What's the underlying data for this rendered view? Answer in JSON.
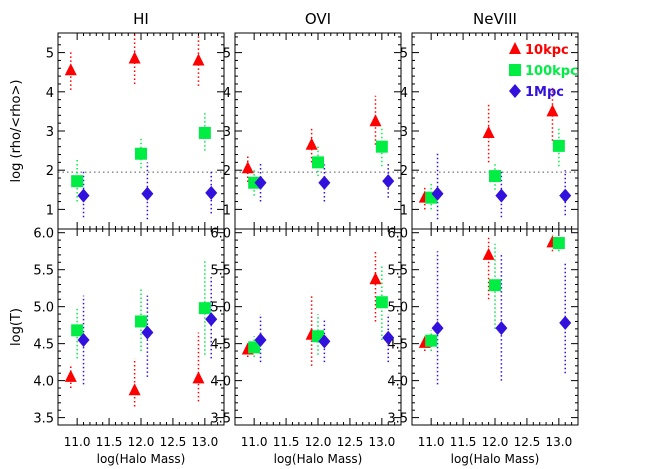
{
  "chart_data": {
    "type": "scatter",
    "columns": [
      "HI",
      "OVI",
      "NeVIII"
    ],
    "xlabel": "log(Halo Mass)",
    "ylabels": [
      "log (rho/<rho>)",
      "log(T)"
    ],
    "xlim": [
      10.7,
      13.3
    ],
    "xticks": [
      "11.0",
      "11.5",
      "12.0",
      "12.5",
      "13.0"
    ],
    "rows": [
      {
        "ylim": [
          0.5,
          5.5
        ],
        "yticks": [
          "1",
          "2",
          "3",
          "4",
          "5"
        ],
        "reference_line": 1.95
      },
      {
        "ylim": [
          3.4,
          6.05
        ],
        "yticks": [
          "3.5",
          "4.0",
          "4.5",
          "5.0",
          "5.5",
          "6.0"
        ]
      }
    ],
    "legend": {
      "placement": "top-right",
      "panel": "NeVIII"
    },
    "series": [
      {
        "name": "10kpc",
        "marker": "triangle",
        "color": "#ff0000",
        "x_offset": -0.1
      },
      {
        "name": "100kpc",
        "marker": "square",
        "color": "#00ee44",
        "x_offset": 0.0
      },
      {
        "name": "1Mpc",
        "marker": "diamond",
        "color": "#3311dd",
        "x_offset": 0.1
      }
    ],
    "panels": [
      {
        "row": 0,
        "col": 0,
        "points": [
          {
            "series": 0,
            "x": 11.0,
            "y": 4.55,
            "lo": 4.05,
            "hi": 5.05
          },
          {
            "series": 0,
            "x": 12.0,
            "y": 4.85,
            "lo": 4.2,
            "hi": 5.5
          },
          {
            "series": 0,
            "x": 13.0,
            "y": 4.8,
            "lo": 4.15,
            "hi": 5.45
          },
          {
            "series": 1,
            "x": 11.0,
            "y": 1.72,
            "lo": 1.2,
            "hi": 2.3
          },
          {
            "series": 1,
            "x": 12.0,
            "y": 2.42,
            "lo": 2.05,
            "hi": 2.8
          },
          {
            "series": 1,
            "x": 13.0,
            "y": 2.95,
            "lo": 2.5,
            "hi": 3.5
          },
          {
            "series": 2,
            "x": 11.0,
            "y": 1.35,
            "lo": 0.8,
            "hi": 2.0
          },
          {
            "series": 2,
            "x": 12.0,
            "y": 1.4,
            "lo": 0.75,
            "hi": 2.2
          },
          {
            "series": 2,
            "x": 13.0,
            "y": 1.42,
            "lo": 0.9,
            "hi": 2.0
          }
        ]
      },
      {
        "row": 0,
        "col": 1,
        "points": [
          {
            "series": 0,
            "x": 11.0,
            "y": 2.05,
            "lo": 1.7,
            "hi": 2.4
          },
          {
            "series": 0,
            "x": 12.0,
            "y": 2.65,
            "lo": 2.2,
            "hi": 3.1
          },
          {
            "series": 0,
            "x": 13.0,
            "y": 3.25,
            "lo": 2.65,
            "hi": 3.9
          },
          {
            "series": 1,
            "x": 11.0,
            "y": 1.68,
            "lo": 1.35,
            "hi": 2.0
          },
          {
            "series": 1,
            "x": 12.0,
            "y": 2.2,
            "lo": 1.85,
            "hi": 2.6
          },
          {
            "series": 1,
            "x": 13.0,
            "y": 2.6,
            "lo": 2.1,
            "hi": 3.1
          },
          {
            "series": 2,
            "x": 11.0,
            "y": 1.68,
            "lo": 1.2,
            "hi": 2.2
          },
          {
            "series": 2,
            "x": 12.0,
            "y": 1.68,
            "lo": 1.2,
            "hi": 2.15
          },
          {
            "series": 2,
            "x": 13.0,
            "y": 1.72,
            "lo": 1.3,
            "hi": 2.2
          }
        ]
      },
      {
        "row": 0,
        "col": 2,
        "points": [
          {
            "series": 0,
            "x": 11.0,
            "y": 1.3,
            "lo": 1.0,
            "hi": 1.6
          },
          {
            "series": 0,
            "x": 12.0,
            "y": 2.95,
            "lo": 2.2,
            "hi": 3.7
          },
          {
            "series": 0,
            "x": 13.0,
            "y": 3.5,
            "lo": 2.75,
            "hi": 4.1
          },
          {
            "series": 1,
            "x": 11.0,
            "y": 1.3,
            "lo": 1.0,
            "hi": 1.65
          },
          {
            "series": 1,
            "x": 12.0,
            "y": 1.85,
            "lo": 1.5,
            "hi": 2.2
          },
          {
            "series": 1,
            "x": 13.0,
            "y": 2.62,
            "lo": 2.1,
            "hi": 3.1
          },
          {
            "series": 2,
            "x": 11.0,
            "y": 1.4,
            "lo": 0.75,
            "hi": 2.45
          },
          {
            "series": 2,
            "x": 12.0,
            "y": 1.35,
            "lo": 0.8,
            "hi": 2.0
          },
          {
            "series": 2,
            "x": 13.0,
            "y": 1.35,
            "lo": 0.85,
            "hi": 2.0
          }
        ]
      },
      {
        "row": 1,
        "col": 0,
        "points": [
          {
            "series": 0,
            "x": 11.0,
            "y": 4.05,
            "lo": 3.9,
            "hi": 4.2
          },
          {
            "series": 0,
            "x": 12.0,
            "y": 3.87,
            "lo": 3.65,
            "hi": 4.3
          },
          {
            "series": 0,
            "x": 13.0,
            "y": 4.03,
            "lo": 3.72,
            "hi": 4.65
          },
          {
            "series": 1,
            "x": 11.0,
            "y": 4.68,
            "lo": 4.3,
            "hi": 5.0
          },
          {
            "series": 1,
            "x": 12.0,
            "y": 4.8,
            "lo": 4.4,
            "hi": 5.25
          },
          {
            "series": 1,
            "x": 13.0,
            "y": 4.98,
            "lo": 4.35,
            "hi": 5.65
          },
          {
            "series": 2,
            "x": 11.0,
            "y": 4.55,
            "lo": 3.95,
            "hi": 5.15
          },
          {
            "series": 2,
            "x": 12.0,
            "y": 4.65,
            "lo": 4.05,
            "hi": 5.15
          },
          {
            "series": 2,
            "x": 13.0,
            "y": 4.83,
            "lo": 4.3,
            "hi": 5.4
          }
        ]
      },
      {
        "row": 1,
        "col": 1,
        "points": [
          {
            "series": 0,
            "x": 11.0,
            "y": 4.42,
            "lo": 4.32,
            "hi": 4.52
          },
          {
            "series": 0,
            "x": 12.0,
            "y": 4.62,
            "lo": 4.2,
            "hi": 5.15
          },
          {
            "series": 0,
            "x": 13.0,
            "y": 5.37,
            "lo": 4.8,
            "hi": 5.75
          },
          {
            "series": 1,
            "x": 11.0,
            "y": 4.45,
            "lo": 4.32,
            "hi": 4.6
          },
          {
            "series": 1,
            "x": 12.0,
            "y": 4.6,
            "lo": 4.35,
            "hi": 4.9
          },
          {
            "series": 1,
            "x": 13.0,
            "y": 5.06,
            "lo": 4.55,
            "hi": 5.55
          },
          {
            "series": 2,
            "x": 11.0,
            "y": 4.55,
            "lo": 4.25,
            "hi": 4.9
          },
          {
            "series": 2,
            "x": 12.0,
            "y": 4.53,
            "lo": 4.25,
            "hi": 4.82
          },
          {
            "series": 2,
            "x": 13.0,
            "y": 4.58,
            "lo": 4.25,
            "hi": 4.9
          }
        ]
      },
      {
        "row": 1,
        "col": 2,
        "points": [
          {
            "series": 0,
            "x": 11.0,
            "y": 4.51,
            "lo": 4.4,
            "hi": 4.6
          },
          {
            "series": 0,
            "x": 12.0,
            "y": 5.7,
            "lo": 5.1,
            "hi": 5.95
          },
          {
            "series": 0,
            "x": 13.0,
            "y": 5.87,
            "lo": 5.75,
            "hi": 5.97
          },
          {
            "series": 1,
            "x": 11.0,
            "y": 4.54,
            "lo": 4.4,
            "hi": 4.68
          },
          {
            "series": 1,
            "x": 12.0,
            "y": 5.29,
            "lo": 4.7,
            "hi": 5.85
          },
          {
            "series": 1,
            "x": 13.0,
            "y": 5.86,
            "lo": 5.75,
            "hi": 5.95
          },
          {
            "series": 2,
            "x": 11.0,
            "y": 4.71,
            "lo": 3.95,
            "hi": 5.75
          },
          {
            "series": 2,
            "x": 12.0,
            "y": 4.71,
            "lo": 4.0,
            "hi": 5.7
          },
          {
            "series": 2,
            "x": 13.0,
            "y": 4.78,
            "lo": 4.1,
            "hi": 5.6
          }
        ]
      }
    ]
  }
}
